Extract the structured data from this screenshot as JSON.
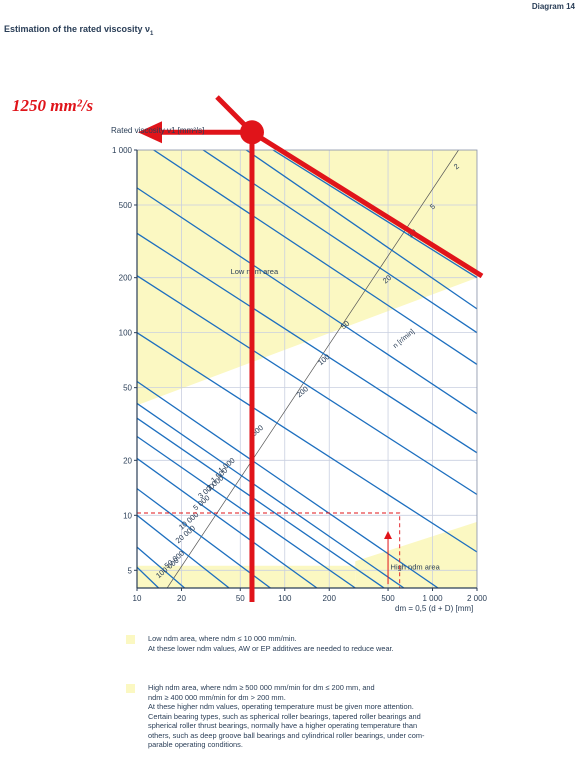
{
  "header": {
    "diagram_label": "Diagram 14"
  },
  "page_title": "Estimation of the rated viscosity ν",
  "page_title_sub": "1",
  "callout": {
    "text": "1250 mm²/s",
    "value": 1250,
    "color": "#e0141a"
  },
  "chart_data": {
    "type": "line",
    "x_scale": "log",
    "y_scale": "log",
    "xlim": [
      10,
      2000
    ],
    "ylim": [
      4,
      1000
    ],
    "xlabel": "dm = 0,5 (d + D) [mm]",
    "ylabel": "Rated viscosity ν1 [mm²/s]",
    "x_ticks": [
      10,
      20,
      50,
      100,
      200,
      500,
      1000,
      2000
    ],
    "x_tick_labels": [
      "10",
      "20",
      "50",
      "100",
      "200",
      "500",
      "1 000",
      "2 000"
    ],
    "y_ticks": [
      5,
      10,
      20,
      50,
      100,
      200,
      500,
      1000
    ],
    "y_tick_labels": [
      "5",
      "10",
      "20",
      "50",
      "100",
      "200",
      "500",
      "1 000"
    ],
    "speed_axis_label": "n [r/min]",
    "speed_lines": [
      {
        "n": "2",
        "points": [
          [
            40,
            1450
          ],
          [
            2000,
            200
          ]
        ]
      },
      {
        "n": "5",
        "points": [
          [
            30,
            1400
          ],
          [
            2000,
            135
          ]
        ]
      },
      {
        "n": "10",
        "points": [
          [
            20,
            1200
          ],
          [
            2000,
            100
          ]
        ]
      },
      {
        "n": "20",
        "points": [
          [
            10,
            1150
          ],
          [
            2000,
            67
          ]
        ]
      },
      {
        "n": "50",
        "points": [
          [
            10,
            620
          ],
          [
            2000,
            36
          ]
        ]
      },
      {
        "n": "100",
        "points": [
          [
            10,
            350
          ],
          [
            2000,
            22
          ]
        ]
      },
      {
        "n": "200",
        "points": [
          [
            10,
            205
          ],
          [
            2000,
            13
          ]
        ]
      },
      {
        "n": "500",
        "points": [
          [
            10,
            100
          ],
          [
            2000,
            6.3
          ]
        ]
      },
      {
        "n": "1 000",
        "points": [
          [
            10,
            54
          ],
          [
            1090,
            4
          ]
        ]
      },
      {
        "n": "1 500",
        "points": [
          [
            10,
            41
          ],
          [
            640,
            4
          ]
        ]
      },
      {
        "n": "2 000",
        "points": [
          [
            10,
            34
          ],
          [
            470,
            4
          ]
        ]
      },
      {
        "n": "3 000",
        "points": [
          [
            10,
            27
          ],
          [
            300,
            4
          ]
        ]
      },
      {
        "n": "5 000",
        "points": [
          [
            10,
            20.5
          ],
          [
            165,
            4
          ]
        ]
      },
      {
        "n": "10 000",
        "points": [
          [
            10,
            14
          ],
          [
            80,
            4
          ]
        ]
      },
      {
        "n": "20 000",
        "points": [
          [
            10,
            10
          ],
          [
            42,
            4
          ]
        ]
      },
      {
        "n": "50 000",
        "points": [
          [
            10,
            6.7
          ],
          [
            21,
            4
          ]
        ]
      },
      {
        "n": "100 000",
        "points": [
          [
            10,
            5.2
          ],
          [
            14,
            4
          ]
        ]
      }
    ],
    "speed_label_positions": [
      {
        "text": "2",
        "x": 1450,
        "y": 780
      },
      {
        "text": "5",
        "x": 1000,
        "y": 470
      },
      {
        "text": "10",
        "x": 710,
        "y": 330
      },
      {
        "text": "20",
        "x": 480,
        "y": 185
      },
      {
        "text": "50",
        "x": 250,
        "y": 104
      },
      {
        "text": "100",
        "x": 175,
        "y": 66
      },
      {
        "text": "200",
        "x": 125,
        "y": 44
      },
      {
        "text": "500",
        "x": 62,
        "y": 27
      },
      {
        "text": "1 000",
        "x": 37,
        "y": 17
      },
      {
        "text": "1 500",
        "x": 33,
        "y": 15
      },
      {
        "text": "2 000",
        "x": 31,
        "y": 13.6
      },
      {
        "text": "3 000",
        "x": 27,
        "y": 12.3
      },
      {
        "text": "5 000",
        "x": 25,
        "y": 10.6
      },
      {
        "text": "10 000",
        "x": 20,
        "y": 8.3
      },
      {
        "text": "20 000",
        "x": 19,
        "y": 7
      },
      {
        "text": "50 000",
        "x": 16,
        "y": 5.1
      },
      {
        "text": "100 000",
        "x": 14,
        "y": 4.5
      }
    ],
    "region_low": {
      "label": "Low ndm area",
      "polygon": [
        [
          10,
          1000
        ],
        [
          2000,
          1000
        ],
        [
          2000,
          200
        ],
        [
          10,
          40
        ]
      ]
    },
    "region_high": {
      "label": "High ndm area",
      "polygon": [
        [
          300,
          4
        ],
        [
          2000,
          4
        ],
        [
          2000,
          9.2
        ],
        [
          300,
          5.6
        ]
      ]
    },
    "region_bottom": {
      "polygon": [
        [
          10,
          4
        ],
        [
          300,
          4
        ],
        [
          300,
          5.3
        ],
        [
          10,
          5.3
        ]
      ]
    },
    "example_dashed": {
      "points": [
        [
          10,
          10.3
        ],
        [
          600,
          10.3
        ],
        [
          600,
          4
        ]
      ]
    },
    "example_arrow": {
      "x": 500,
      "from_y": 4.2,
      "to_y": 7.8
    },
    "annotation_vertical": {
      "x": 60,
      "y_from": 4,
      "y_to": 1600
    },
    "annotation_diagonal": {
      "points": [
        [
          60,
          1250
        ],
        [
          2000,
          140
        ]
      ]
    },
    "annotation_arrow_to_y": {
      "from": [
        60,
        1250
      ],
      "to": [
        2.2,
        1250
      ]
    },
    "annotation_point": {
      "x": 60,
      "y": 1250,
      "label": "1250 mm²/s"
    }
  },
  "legend": {
    "low": "Low ndm area, where ndm ≤ 10 000 mm/min.\nAt these lower ndm values, AW or EP additives are needed to reduce wear.",
    "high": "High ndm area, where ndm ≥ 500 000 mm/min for dm ≤ 200 mm, and\nndm ≥ 400 000 mm/min for dm > 200 mm.\nAt these higher ndm values, operating temperature must be given more attention.\nCertain bearing types, such as spherical roller bearings, tapered roller bearings and\nspherical roller thrust bearings, normally have a higher operating temperature than\nothers, such as deep groove ball bearings and cylindrical roller bearings, under com-\nparable operating conditions."
  },
  "colors": {
    "speed_lines": "#1d6fbf",
    "region": "#fbf8c2",
    "grid": "#c9cfe0",
    "annotation": "#e0141a",
    "text": "#2a3e57",
    "dashed": "#e0141a"
  }
}
